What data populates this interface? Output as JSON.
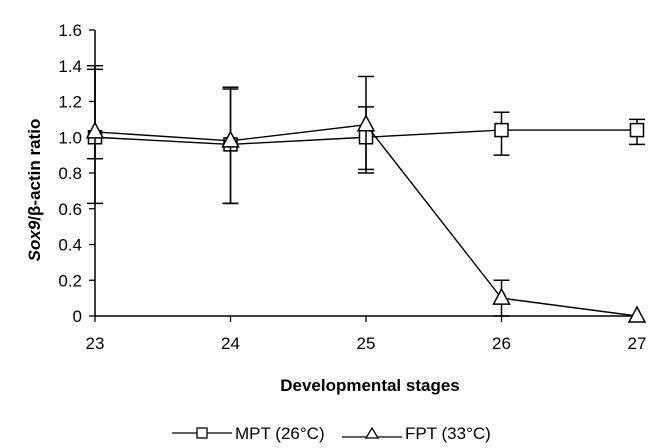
{
  "chart_data": {
    "type": "line",
    "title": "",
    "xlabel": "Developmental stages",
    "ylabel_italic": "Sox9",
    "ylabel_rest": "/β-actin ratio",
    "x": [
      23,
      24,
      25,
      26,
      27
    ],
    "xlim": [
      23,
      27
    ],
    "ylim": [
      0,
      1.6
    ],
    "yticks": [
      "0",
      "0.2",
      "0.4",
      "0.6",
      "0.8",
      "1.0",
      "1.2",
      "1.4",
      "1.6"
    ],
    "yticks_values": [
      0,
      0.2,
      0.4,
      0.6,
      0.8,
      1.0,
      1.2,
      1.4,
      1.6
    ],
    "xticks": [
      "23",
      "24",
      "25",
      "26",
      "27"
    ],
    "grid": false,
    "legend_position": "bottom-center",
    "series": [
      {
        "name": "MPT (26°C)",
        "marker": "square",
        "values": [
          1.0,
          0.96,
          1.0,
          1.04,
          1.04
        ],
        "err_low": [
          0.12,
          0.33,
          0.2,
          0.14,
          0.08
        ],
        "err_high": [
          0.38,
          0.31,
          0.17,
          0.1,
          0.06
        ]
      },
      {
        "name": "FPT (33°C)",
        "marker": "triangle",
        "values": [
          1.03,
          0.98,
          1.07,
          0.1,
          0.0
        ],
        "err_low": [
          0.4,
          0.35,
          0.25,
          0.1,
          0.0
        ],
        "err_high": [
          0.37,
          0.3,
          0.27,
          0.1,
          0.0
        ]
      }
    ]
  }
}
